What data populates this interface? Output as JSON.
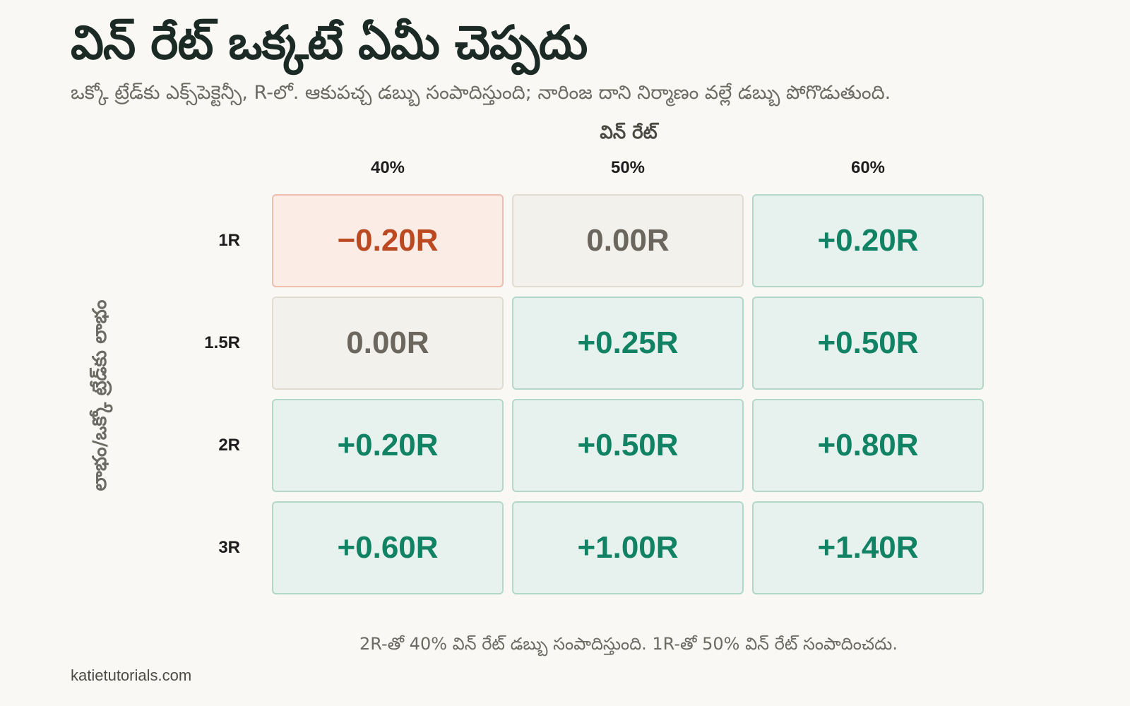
{
  "chart_data": {
    "type": "heatmap",
    "title": "విన్ రేట్ ఒక్కటే ఏమీ చెప్పదు",
    "subtitle": "ఒక్కో ట్రేడ్‌కు ఎక్స్‌పెక్టెన్సీ, R-లో. ఆకుపచ్చ డబ్బు సంపాదిస్తుంది; నారింజ దాని నిర్మాణం వల్లే డబ్బు పోగొడుతుంది.",
    "xlabel": "విన్ రేట్",
    "ylabel": "లాభం/ఒక్కో ట్రేడ్‌కు లాభం",
    "x_categories": [
      "40%",
      "50%",
      "60%"
    ],
    "y_categories": [
      "1R",
      "1.5R",
      "2R",
      "3R"
    ],
    "values": [
      [
        -0.2,
        0.0,
        0.2
      ],
      [
        0.0,
        0.25,
        0.5
      ],
      [
        0.2,
        0.5,
        0.8
      ],
      [
        0.6,
        1.0,
        1.4
      ]
    ],
    "value_labels": [
      [
        "−0.20R",
        "0.00R",
        "+0.20R"
      ],
      [
        "0.00R",
        "+0.25R",
        "+0.50R"
      ],
      [
        "+0.20R",
        "+0.50R",
        "+0.80R"
      ],
      [
        "+0.60R",
        "+1.00R",
        "+1.40R"
      ]
    ],
    "colors": {
      "positive": "#118264",
      "negative": "#bb4a22",
      "neutral": "#6b675e"
    },
    "annotation": "2R-తో 40% విన్ రేట్ డబ్బు సంపాదిస్తుంది. 1R-తో 50% విన్ రేట్ సంపాదించదు."
  },
  "footer": {
    "source": "katietutorials.com"
  }
}
